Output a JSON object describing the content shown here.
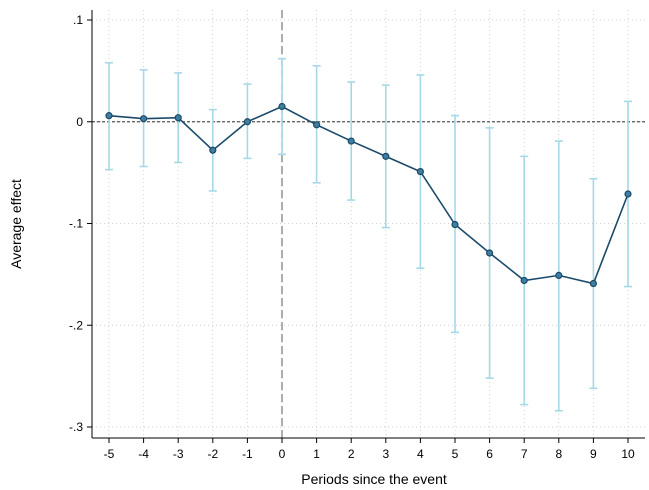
{
  "chart_data": {
    "type": "line",
    "title": "",
    "xlabel": "Periods since the event",
    "ylabel": "Average effect",
    "xlim": [
      -5,
      10
    ],
    "ylim": [
      -0.3,
      0.1
    ],
    "x_ticks": [
      -5,
      -4,
      -3,
      -2,
      -1,
      0,
      1,
      2,
      3,
      4,
      5,
      6,
      7,
      8,
      9,
      10
    ],
    "y_ticks": [
      {
        "value": -0.3,
        "label": "-.3"
      },
      {
        "value": -0.2,
        "label": "-.2"
      },
      {
        "value": -0.1,
        "label": "-.1"
      },
      {
        "value": 0,
        "label": "0"
      },
      {
        "value": 0.1,
        "label": ".1"
      }
    ],
    "grid": true,
    "reference_lines": {
      "horizontal_at": 0,
      "vertical_at": 0
    },
    "series": [
      {
        "x": [
          -5,
          -4,
          -3,
          -2,
          -1,
          0,
          1,
          2,
          3,
          4,
          5,
          6,
          7,
          8,
          9,
          10
        ],
        "y": [
          0.006,
          0.003,
          0.004,
          -0.028,
          0.0,
          0.015,
          -0.003,
          -0.019,
          -0.034,
          -0.049,
          -0.101,
          -0.129,
          -0.156,
          -0.151,
          -0.159,
          -0.071
        ],
        "ci_low": [
          -0.047,
          -0.044,
          -0.04,
          -0.068,
          -0.036,
          -0.032,
          -0.06,
          -0.077,
          -0.104,
          -0.144,
          -0.207,
          -0.252,
          -0.278,
          -0.284,
          -0.262,
          -0.162
        ],
        "ci_high": [
          0.058,
          0.051,
          0.048,
          0.012,
          0.037,
          0.062,
          0.055,
          0.039,
          0.036,
          0.046,
          0.006,
          -0.006,
          -0.034,
          -0.019,
          -0.056,
          0.02
        ]
      }
    ],
    "colors": {
      "line": "#1a4a6b",
      "ci": "#a6d8e7",
      "grid": "#d0d0d0",
      "axis": "#000000",
      "reference": "#555555"
    }
  }
}
